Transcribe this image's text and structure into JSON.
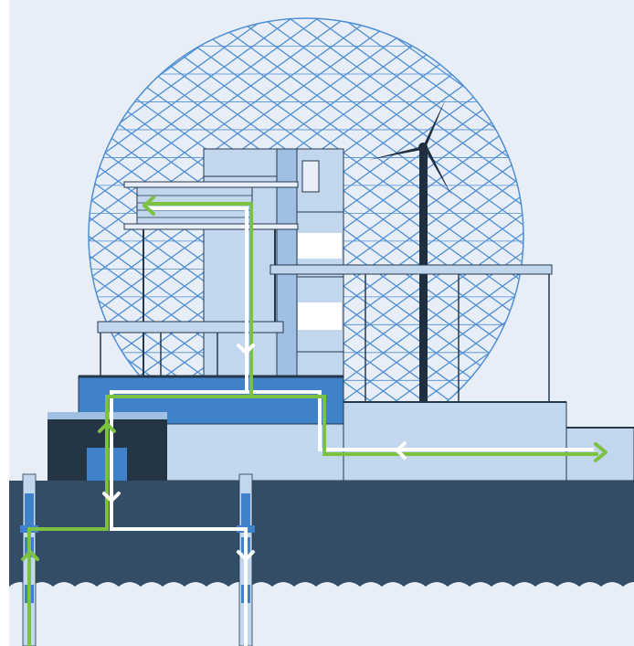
{
  "scene": {
    "colors": {
      "background": "#e8eef8",
      "dome_lattice": "#4f8fd4",
      "building_light": "#c2d6ee",
      "building_mid": "#9fbfe3",
      "accent_blue": "#3f82c9",
      "ground_dark": "#344d66",
      "navy": "#243546",
      "turbine": "#1f2f40",
      "flow_green": "#7cc242",
      "flow_white": "#ffffff",
      "frame_line": "#25384a"
    }
  }
}
